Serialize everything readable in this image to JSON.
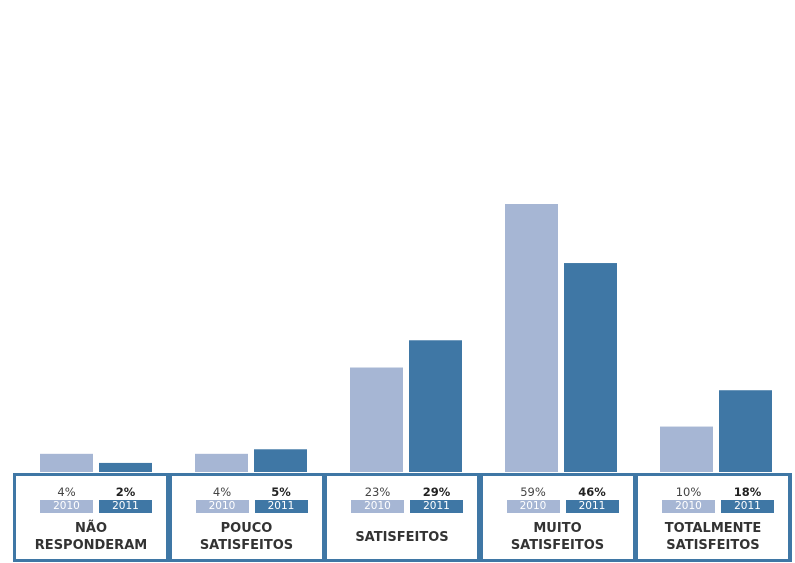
{
  "colors": {
    "y2010": "#a6b6d4",
    "y2011": "#3f77a5"
  },
  "chart_data": {
    "type": "bar",
    "categories": [
      "NÃO\nRESPONDERAM",
      "POUCO\nSATISFEITOS",
      "SATISFEITOS",
      "MUITO\nSATISFEITOS",
      "TOTALMENTE\nSATISFEITOS"
    ],
    "series": [
      {
        "name": "2010",
        "values": [
          4,
          4,
          23,
          59,
          10
        ],
        "labels": [
          "4%",
          "4%",
          "23%",
          "59%",
          "10%"
        ]
      },
      {
        "name": "2011",
        "values": [
          2,
          5,
          29,
          46,
          18
        ],
        "labels": [
          "2%",
          "5%",
          "29%",
          "46%",
          "18%"
        ]
      }
    ],
    "ylim": [
      0,
      59
    ],
    "legend": "in-box",
    "grid": false
  }
}
